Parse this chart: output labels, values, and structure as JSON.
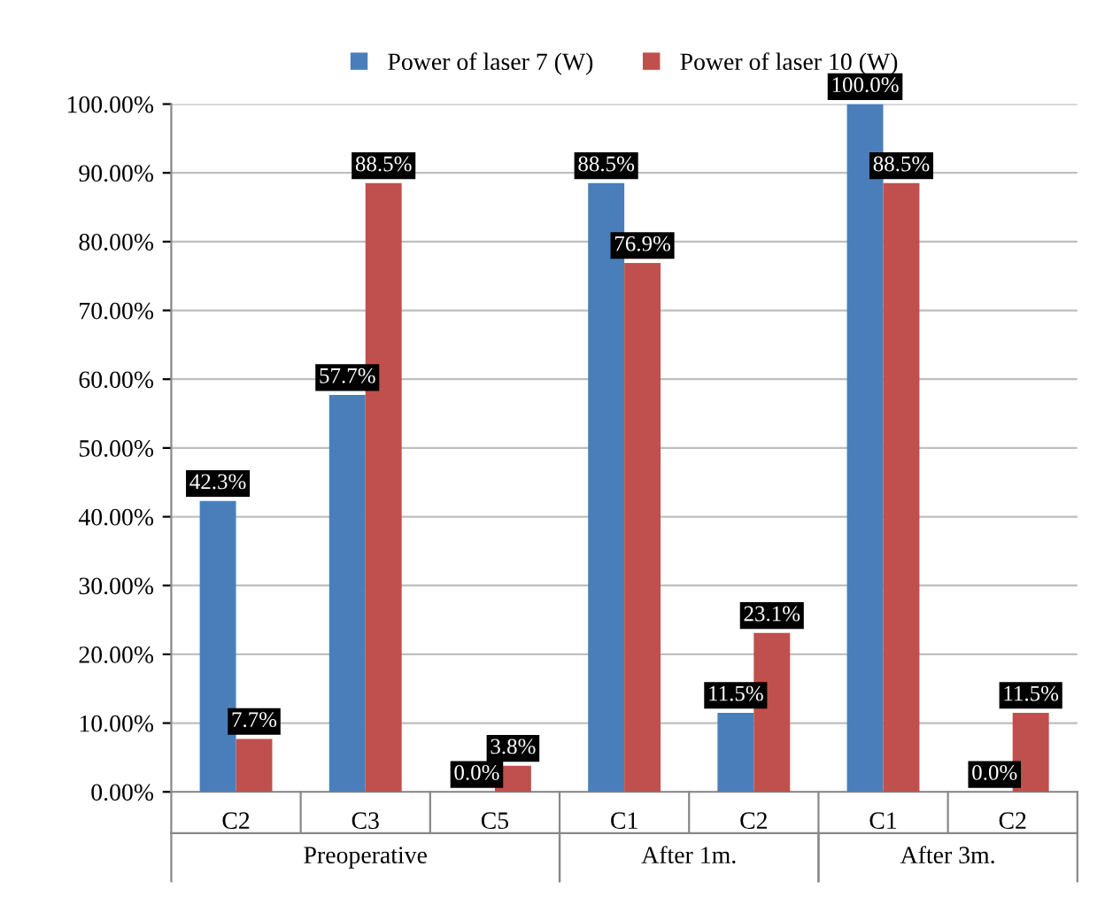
{
  "chart_data": {
    "type": "bar",
    "categories": [
      "C2",
      "C3",
      "C5",
      "C1",
      "C2",
      "C1",
      "C2"
    ],
    "series": [
      {
        "name": "Power of laser 7 (W)",
        "color": "#4a7ebb",
        "values": [
          42.3,
          57.7,
          0.0,
          88.5,
          11.5,
          100.0,
          0.0
        ],
        "value_labels": [
          "42.3%",
          "57.7%",
          "0.0%",
          "88.5%",
          "11.5%",
          "100.0%",
          "0.0%"
        ]
      },
      {
        "name": "Power of laser 10 (W)",
        "color": "#c0504d",
        "values": [
          7.7,
          88.5,
          3.8,
          76.9,
          23.1,
          88.5,
          11.5
        ],
        "value_labels": [
          "7.7%",
          "88.5%",
          "3.8%",
          "76.9%",
          "23.1%",
          "88.5%",
          "11.5%"
        ]
      }
    ],
    "ylim": [
      0,
      100
    ],
    "yticks": [
      {
        "value": 0,
        "label": "0.00%"
      },
      {
        "value": 10,
        "label": "10.00%"
      },
      {
        "value": 20,
        "label": "20.00%"
      },
      {
        "value": 30,
        "label": "30.00%"
      },
      {
        "value": 40,
        "label": "40.00%"
      },
      {
        "value": 50,
        "label": "50.00%"
      },
      {
        "value": 60,
        "label": "60.00%"
      },
      {
        "value": 70,
        "label": "70.00%"
      },
      {
        "value": 80,
        "label": "80.00%"
      },
      {
        "value": 90,
        "label": "90.00%"
      },
      {
        "value": 100,
        "label": "100.00%"
      }
    ],
    "grid": "y",
    "legend": "top",
    "annotations": [
      "Preoperative",
      "After 1m.",
      "After 3m."
    ]
  }
}
